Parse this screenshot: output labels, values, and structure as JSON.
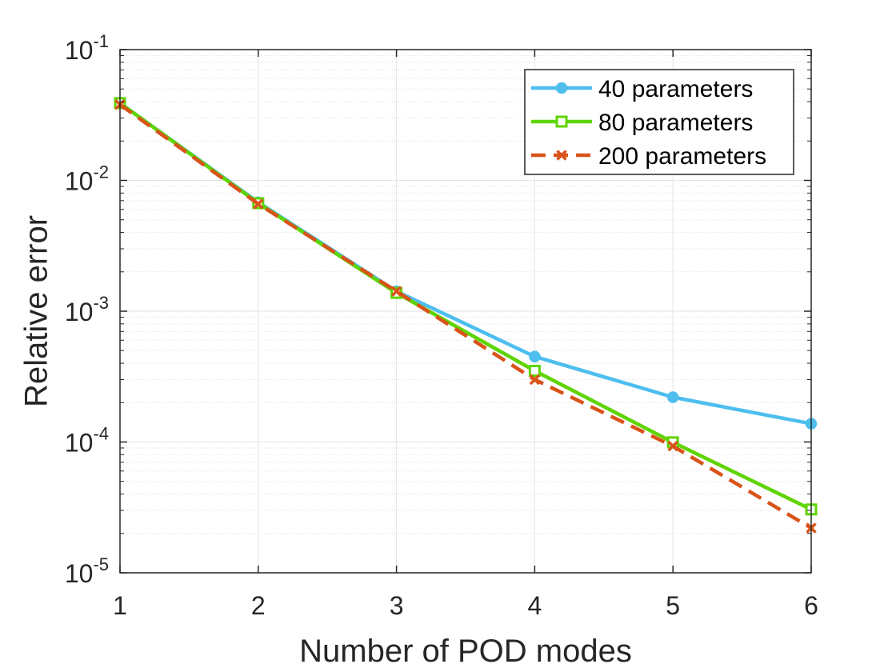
{
  "chart_data": {
    "type": "line",
    "title": "",
    "xlabel": "Number of POD modes",
    "ylabel": "Relative error",
    "x": [
      1,
      2,
      3,
      4,
      5,
      6
    ],
    "xlim": [
      1,
      6
    ],
    "ylim": [
      1e-05,
      0.1
    ],
    "yscale": "log",
    "grid": true,
    "minor_grid": true,
    "legend_position": "top-right",
    "x_tick_labels": [
      "1",
      "2",
      "3",
      "4",
      "5",
      "6"
    ],
    "y_ticks": [
      {
        "value": 1e-05,
        "base": "10",
        "exponent": "-5"
      },
      {
        "value": 0.0001,
        "base": "10",
        "exponent": "-4"
      },
      {
        "value": 0.001,
        "base": "10",
        "exponent": "-3"
      },
      {
        "value": 0.01,
        "base": "10",
        "exponent": "-2"
      },
      {
        "value": 0.1,
        "base": "10",
        "exponent": "-1"
      }
    ],
    "series": [
      {
        "name": "40 parameters",
        "color": "#4DBEEE",
        "line_style": "solid",
        "marker": "circle",
        "values": [
          0.039,
          0.0068,
          0.00142,
          0.00045,
          0.00022,
          0.000138
        ]
      },
      {
        "name": "80 parameters",
        "color": "#5FD400",
        "line_style": "solid",
        "marker": "square",
        "values": [
          0.039,
          0.0067,
          0.00138,
          0.00035,
          9.95e-05,
          3.05e-05
        ]
      },
      {
        "name": "200 parameters",
        "color": "#D95319",
        "line_style": "dashed",
        "marker": "x",
        "values": [
          0.038,
          0.0066,
          0.00142,
          0.0003,
          9.3e-05,
          2.2e-05
        ]
      }
    ]
  }
}
